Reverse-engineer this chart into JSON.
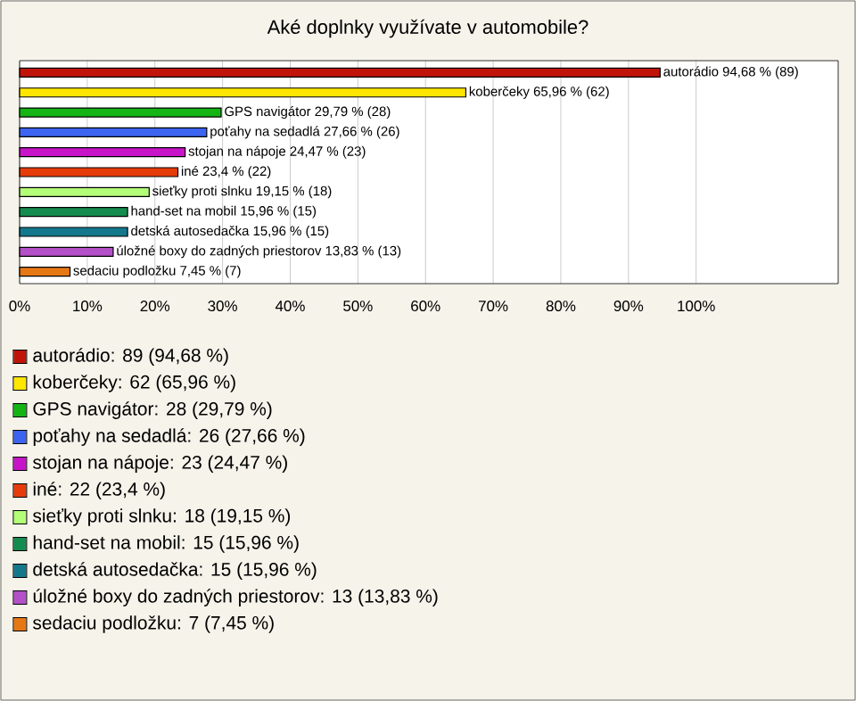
{
  "chart_data": {
    "type": "bar",
    "orientation": "horizontal",
    "title": "Aké doplnky využívate v automobile?",
    "categories": [
      null,
      null,
      null,
      null,
      null,
      null,
      null,
      null,
      null,
      null,
      null
    ],
    "values": [
      94.68,
      65.96,
      29.79,
      27.66,
      24.47,
      23.4,
      19.15,
      15.96,
      15.96,
      13.83,
      7.45
    ],
    "value_labels": [
      "autorádio 94,68 % (89)",
      "koberčeky 65,96 % (62)",
      "GPS navigátor 29,79 % (28)",
      "poťahy na sedadlá 27,66 % (26)",
      "stojan na nápoje 24,47 % (23)",
      "iné 23,4 % (22)",
      "sieťky proti slnku 19,15 % (18)",
      "hand-set na mobil 15,96 % (15)",
      "detská autosedačka 15,96 % (15)",
      "úložné boxy do zadných priestorov 13,83 % (13)",
      "sedaciu podložku 7,45 % (7)"
    ],
    "colors": [
      "#c0140a",
      "#ffe600",
      "#14b414",
      "#3c64f0",
      "#c814c8",
      "#e63c0a",
      "#b4ff78",
      "#148c50",
      "#14788c",
      "#b450c8",
      "#e67814"
    ],
    "xlim": [
      0,
      121
    ],
    "xticks": [
      {
        "value": 0,
        "label": "0%"
      },
      {
        "value": 10,
        "label": "10%"
      },
      {
        "value": 20,
        "label": "20%"
      },
      {
        "value": 30,
        "label": "30%"
      },
      {
        "value": 40,
        "label": "40%"
      },
      {
        "value": 50,
        "label": "50%"
      },
      {
        "value": 60,
        "label": "60%"
      },
      {
        "value": 70,
        "label": "70%"
      },
      {
        "value": 80,
        "label": "80%"
      },
      {
        "value": 90,
        "label": "90%"
      },
      {
        "value": 100,
        "label": "100%"
      }
    ],
    "grid": "x",
    "annotations": [
      "autorádio: 89 (94,68 %)",
      "koberčeky: 62 (65,96 %)",
      "GPS navigátor: 28 (29,79 %)",
      "poťahy na sedadlá: 26 (27,66 %)",
      "stojan na nápoje: 23 (24,47 %)",
      "iné: 22 (23,4 %)",
      "sieťky proti slnku: 18 (19,15 %)",
      "hand-set na mobil: 15 (15,96 %)",
      "detská autosedačka: 15 (15,96 %)",
      "úložné boxy do zadných priestorov: 13 (13,83 %)",
      "sedaciu podložku: 7 (7,45 %)"
    ]
  }
}
